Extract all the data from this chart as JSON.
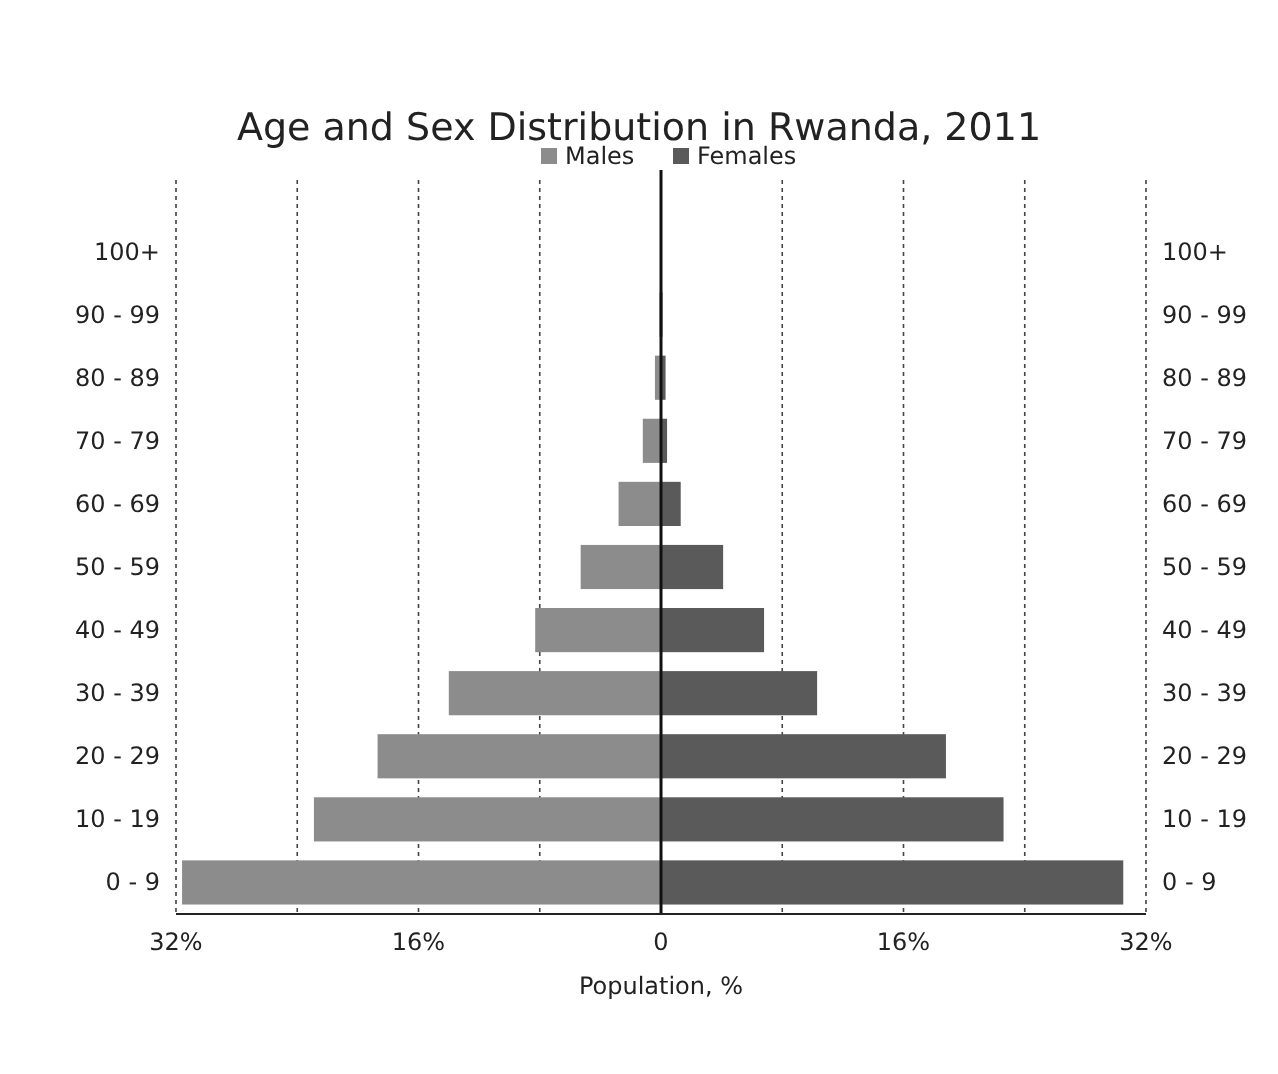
{
  "chart_data": {
    "type": "bar",
    "orientation": "horizontal",
    "stacked": true,
    "title": "Age and Sex Distribution in Rwanda, 2011",
    "xlabel": "Population, %",
    "categories": [
      "100+",
      "90 - 99",
      "80 - 89",
      "70 - 79",
      "60 - 69",
      "50 - 59",
      "40 - 49",
      "30 - 39",
      "20 - 29",
      "10 - 19",
      "0 - 9"
    ],
    "series": [
      {
        "name": "Males",
        "color": "#8c8c8c",
        "values": [
          0,
          -0.1,
          -0.4,
          -1.2,
          -2.8,
          -5.3,
          -8.3,
          -14,
          -18.7,
          -22.9,
          -31.6
        ]
      },
      {
        "name": "Females",
        "color": "#5a5a5a",
        "values": [
          0,
          0.1,
          0.3,
          0.4,
          1.3,
          4.1,
          6.8,
          10.3,
          18.8,
          22.6,
          30.5
        ]
      }
    ],
    "xlim": [
      -32,
      32
    ],
    "xticks": [
      {
        "value": -32,
        "label": "32%"
      },
      {
        "value": -24,
        "label": null
      },
      {
        "value": -16,
        "label": "16%"
      },
      {
        "value": -8,
        "label": null
      },
      {
        "value": 0,
        "label": "0"
      },
      {
        "value": 8,
        "label": null
      },
      {
        "value": 16,
        "label": "16%"
      },
      {
        "value": 24,
        "label": null
      },
      {
        "value": 32,
        "label": "32%"
      }
    ],
    "grid": "x",
    "legend": "top"
  }
}
